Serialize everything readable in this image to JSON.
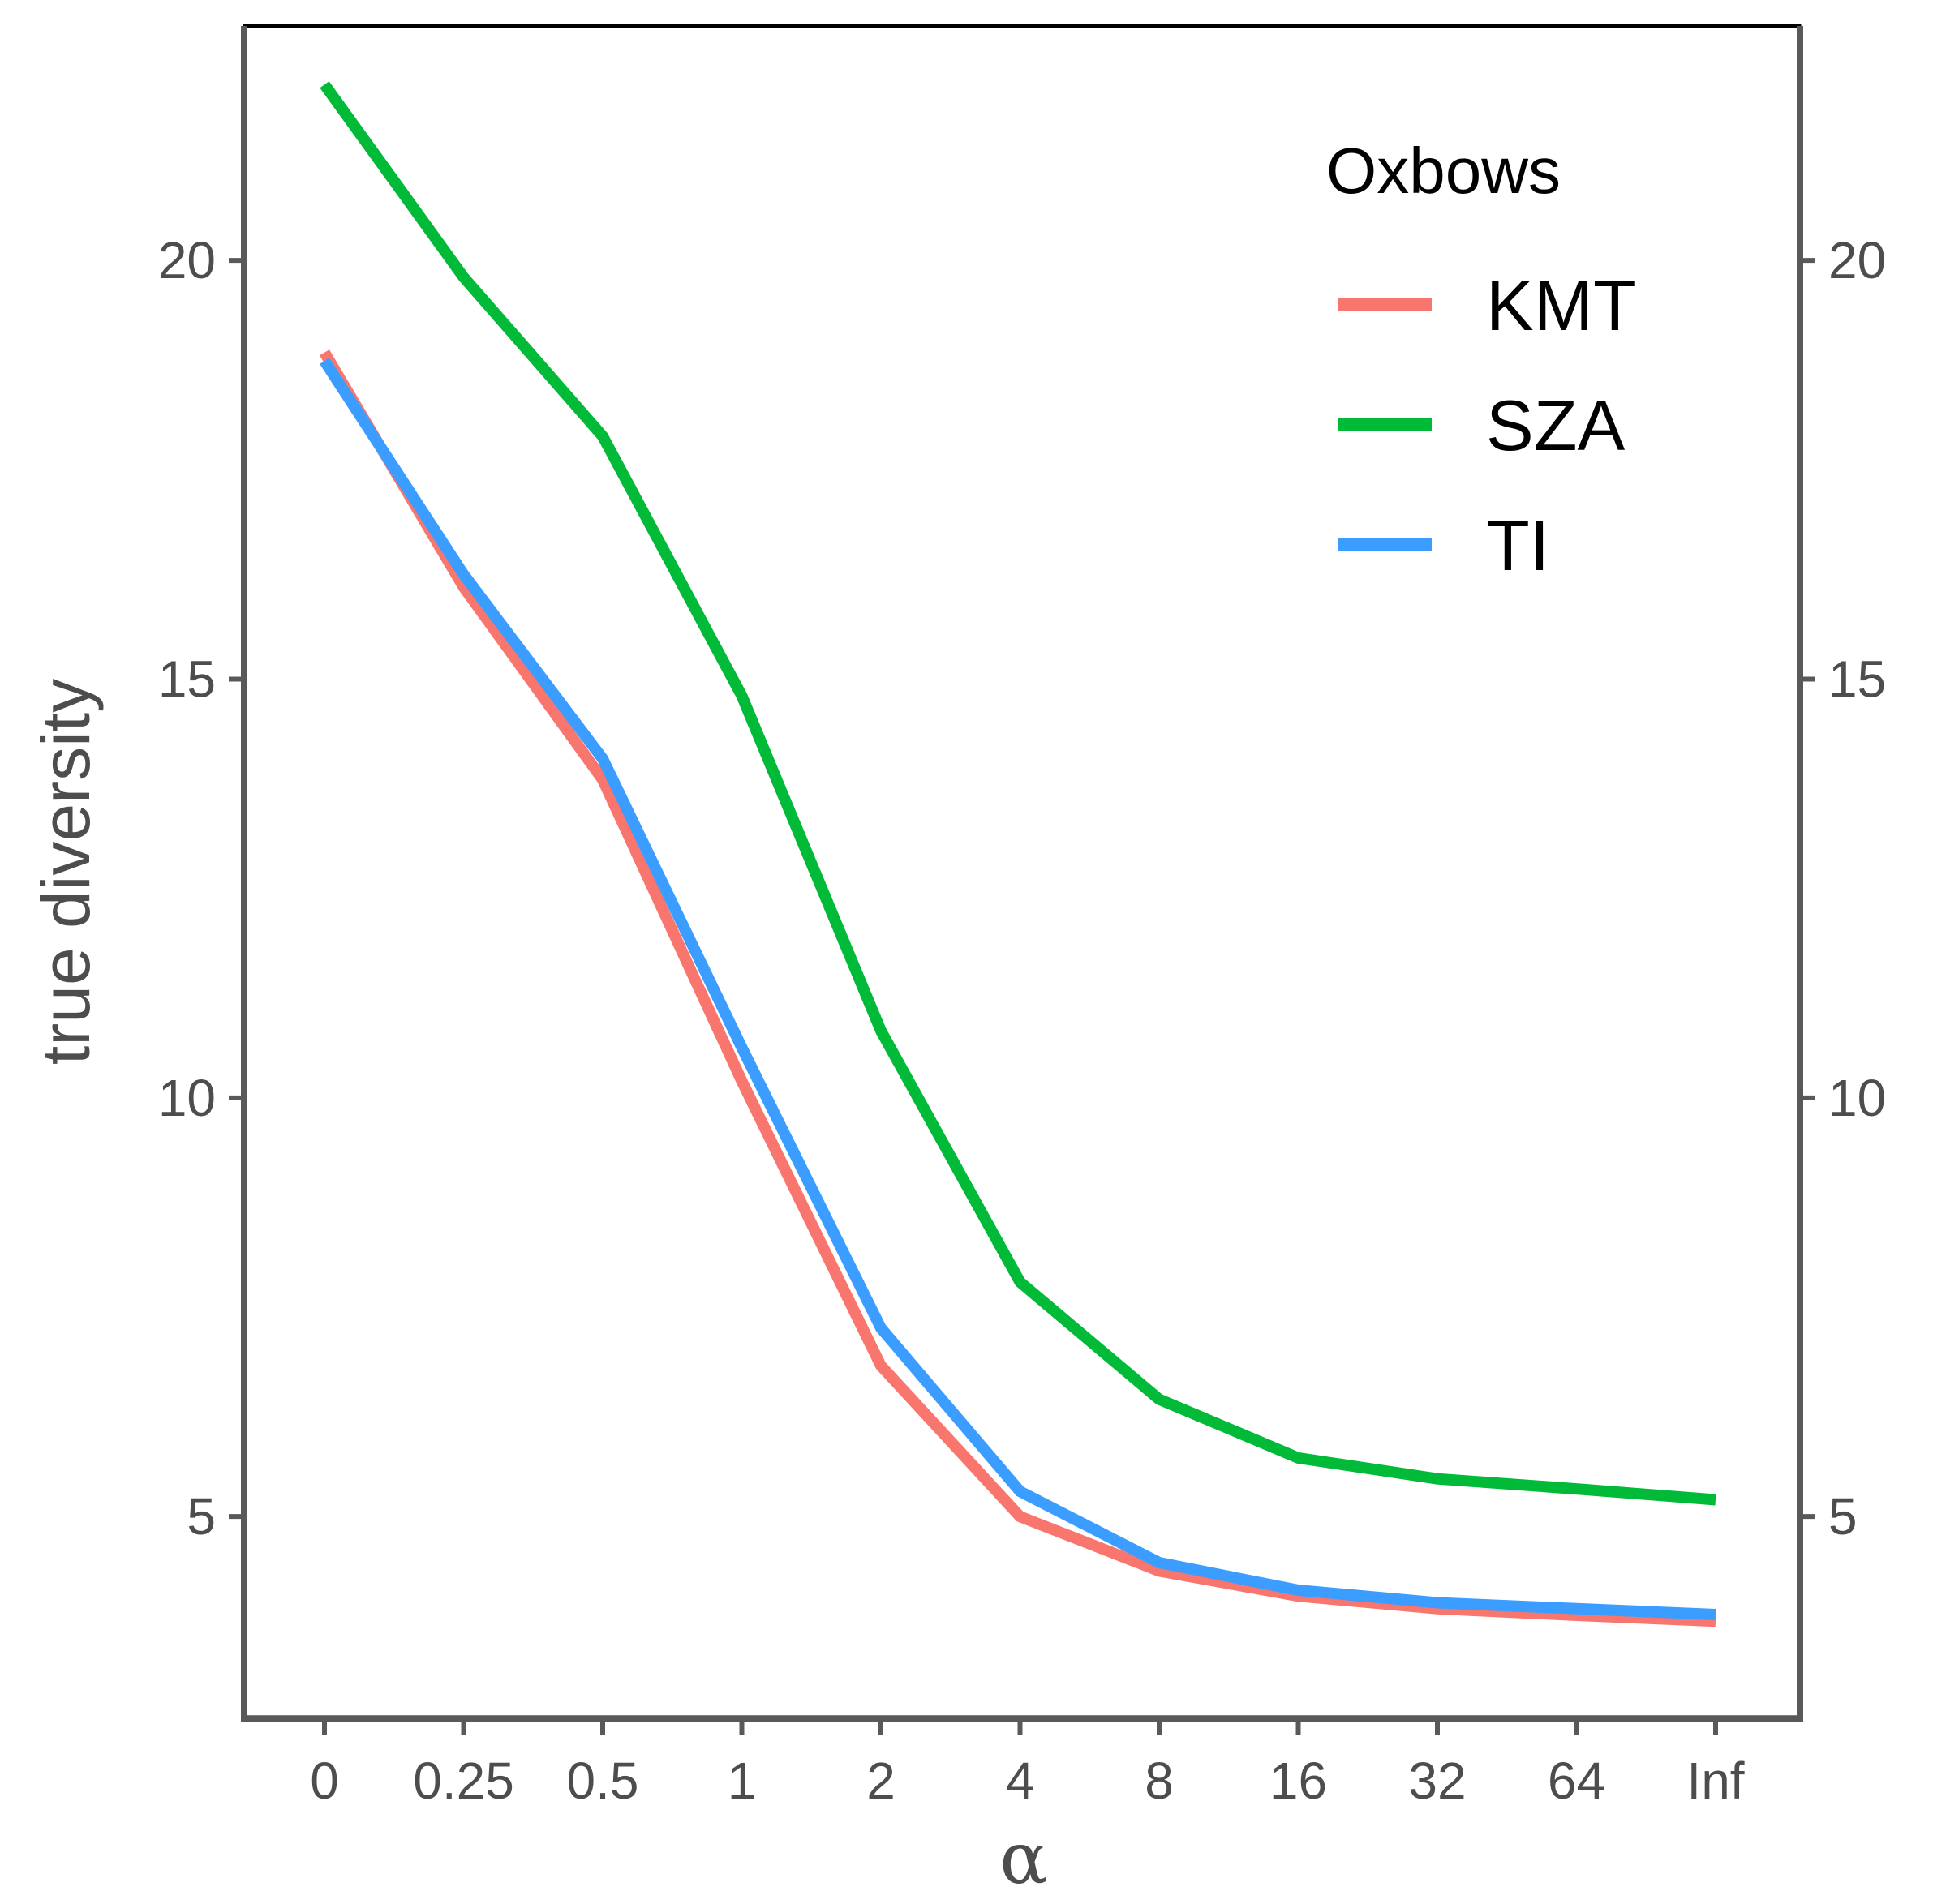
{
  "chart_data": {
    "type": "line",
    "title": "",
    "xlabel": "α",
    "ylabel": "true diversity",
    "categories": [
      "0",
      "0.25",
      "0.5",
      "1",
      "2",
      "4",
      "8",
      "16",
      "32",
      "64",
      "Inf"
    ],
    "yticks": [
      5,
      10,
      15,
      20
    ],
    "ylim": [
      2.6,
      22.8
    ],
    "grid": false,
    "secondary_y_axis": true,
    "legend": {
      "title": "Oxbows",
      "position": "top-right"
    },
    "series": [
      {
        "name": "KMT",
        "color": "#F8766D",
        "values": [
          18.9,
          16.1,
          13.8,
          10.2,
          6.8,
          5.0,
          4.35,
          4.05,
          3.9,
          3.82,
          3.75
        ]
      },
      {
        "name": "SZA",
        "color": "#00BA38",
        "values": [
          22.1,
          19.8,
          17.9,
          14.8,
          10.8,
          7.8,
          6.4,
          5.7,
          5.45,
          5.33,
          5.2
        ]
      },
      {
        "name": "TI",
        "color": "#3B9DFF",
        "values": [
          18.8,
          16.25,
          14.05,
          10.6,
          7.25,
          5.3,
          4.45,
          4.12,
          3.97,
          3.9,
          3.83
        ]
      }
    ]
  }
}
